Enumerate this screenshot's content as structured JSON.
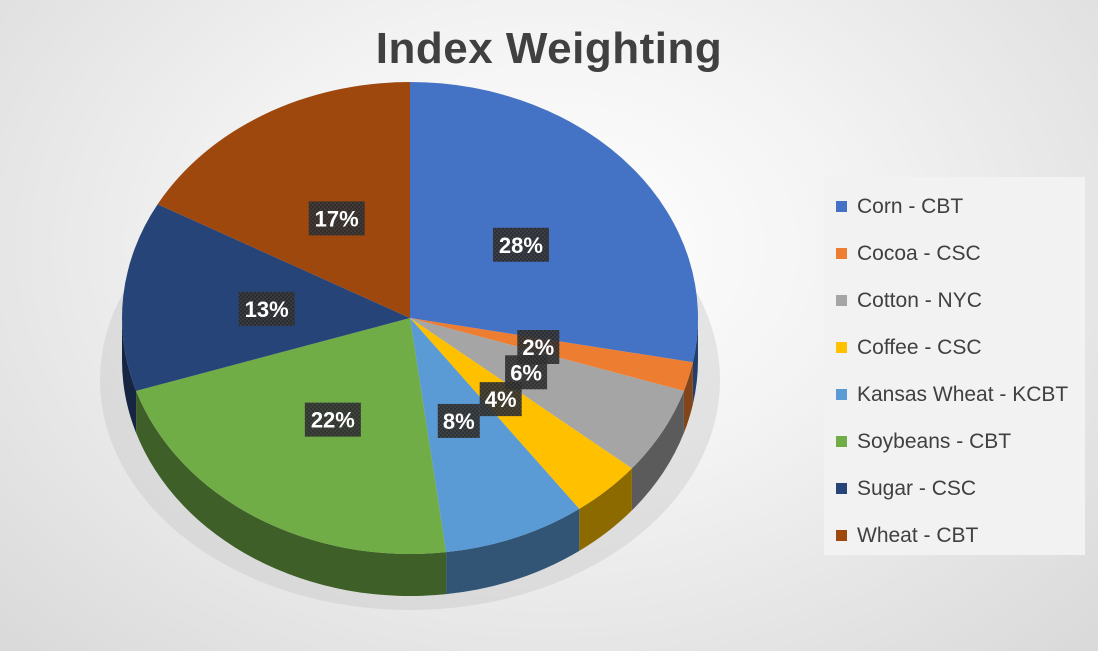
{
  "chart_data": {
    "type": "pie",
    "title": "Index Weighting",
    "legend_position": "right",
    "slices": [
      {
        "label": "Corn - CBT",
        "value": 28,
        "data_label": "28%",
        "color": "#4472C4"
      },
      {
        "label": "Cocoa - CSC",
        "value": 2,
        "data_label": "2%",
        "color": "#ED7D31"
      },
      {
        "label": "Cotton - NYC",
        "value": 6,
        "data_label": "6%",
        "color": "#A5A5A5"
      },
      {
        "label": "Coffee - CSC",
        "value": 4,
        "data_label": "4%",
        "color": "#FFC000"
      },
      {
        "label": "Kansas Wheat - KCBT",
        "value": 8,
        "data_label": "8%",
        "color": "#5B9BD5"
      },
      {
        "label": "Soybeans - CBT",
        "value": 22,
        "data_label": "22%",
        "color": "#70AD47"
      },
      {
        "label": "Sugar - CSC",
        "value": 13,
        "data_label": "13%",
        "color": "#264478"
      },
      {
        "label": "Wheat - CBT",
        "value": 17,
        "data_label": "17%",
        "color": "#9E480E"
      }
    ]
  }
}
